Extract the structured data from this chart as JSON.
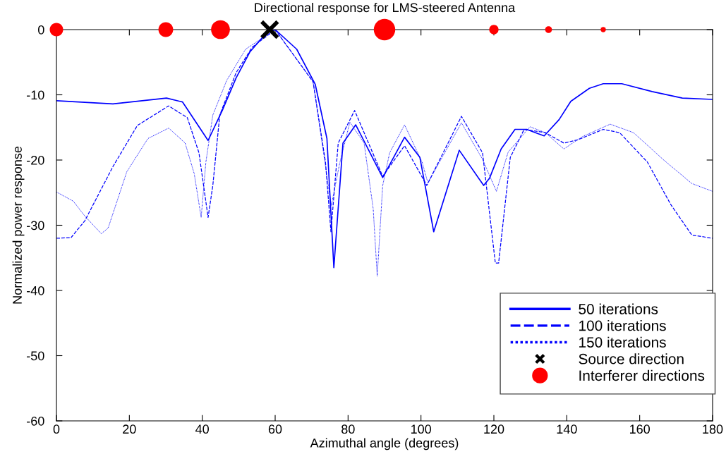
{
  "chart_data": {
    "type": "line",
    "title": "Directional response for LMS-steered Antenna",
    "xlabel": "Azimuthal angle (degrees)",
    "ylabel": "Normalized power response",
    "xlim": [
      0,
      180
    ],
    "xticks": [
      0,
      20,
      40,
      60,
      80,
      100,
      120,
      140,
      160,
      180
    ],
    "ylim": [
      -60,
      0
    ],
    "yticks": [
      -60,
      -50,
      -40,
      -30,
      -20,
      -10,
      0
    ],
    "grid": false,
    "legend": "bottom right",
    "series": [
      {
        "name": "50 iterations",
        "line_style": "solid",
        "color": "#0000ff",
        "x": [
          0,
          15.5,
          30.2,
          34.6,
          41.6,
          45.5,
          49.3,
          53.1,
          57.6,
          60,
          65.9,
          71,
          74.2,
          76.1,
          78.6,
          82.1,
          89.5,
          95.5,
          99.7,
          103.5,
          110.5,
          117.2,
          118.8,
          122,
          125.8,
          129,
          133.8,
          137.9,
          141.1,
          146.2,
          150,
          155.1,
          163.4,
          171.7,
          180
        ],
        "values": [
          -10.9,
          -11.4,
          -10.5,
          -11.1,
          -17.0,
          -12.4,
          -7.4,
          -3.4,
          -0.5,
          0,
          -3.0,
          -8.4,
          -16.7,
          -36.5,
          -17.4,
          -14.6,
          -22.7,
          -16.5,
          -19.6,
          -31.0,
          -18.5,
          -23.9,
          -22.8,
          -18.3,
          -15.3,
          -15.3,
          -16.3,
          -13.8,
          -11.0,
          -9.0,
          -8.3,
          -8.3,
          -9.5,
          -10.5,
          -10.7
        ]
      },
      {
        "name": "100 iterations",
        "line_style": "dashed",
        "color": "#0000ff",
        "x": [
          0,
          4,
          7.8,
          15.5,
          22.2,
          30.8,
          35.9,
          39.1,
          41.6,
          42.9,
          44.8,
          49.3,
          53.7,
          60,
          70.4,
          73.8,
          75.3,
          77.3,
          81.8,
          89.5,
          95.5,
          101.6,
          111.1,
          116.9,
          120.4,
          121.3,
          124.5,
          128.3,
          134.1,
          139.2,
          143,
          150,
          154.5,
          162.1,
          168.5,
          174.3,
          180
        ],
        "values": [
          -32.0,
          -31.9,
          -29.3,
          -21.0,
          -14.7,
          -11.7,
          -13.5,
          -18.9,
          -28.8,
          -23.9,
          -13.1,
          -6.6,
          -2.7,
          0,
          -8.0,
          -20.3,
          -31.0,
          -17.4,
          -12.4,
          -22.5,
          -17.8,
          -23.9,
          -13.3,
          -18.9,
          -35.8,
          -35.8,
          -19.6,
          -15.3,
          -15.8,
          -17.4,
          -16.9,
          -15.3,
          -15.8,
          -20.3,
          -26.8,
          -31.5,
          -32.0
        ]
      },
      {
        "name": "150 iterations",
        "line_style": "dotted",
        "color": "#0000ff",
        "x": [
          0,
          4.6,
          7.8,
          12.3,
          14.2,
          19.3,
          25.1,
          30.8,
          35.3,
          37.8,
          39.7,
          41,
          42.9,
          46.7,
          51.9,
          60,
          70.4,
          75.4,
          77.7,
          80.5,
          84.4,
          86.9,
          88,
          89.5,
          91.4,
          95.5,
          100.3,
          101.9,
          111.1,
          116.9,
          120.7,
          123.9,
          129.9,
          134.1,
          139.2,
          144.3,
          151.9,
          158.3,
          166.6,
          174.3,
          180
        ],
        "values": [
          -24.9,
          -26.3,
          -28.6,
          -31.3,
          -30.4,
          -21.8,
          -16.7,
          -15.1,
          -17.4,
          -22.1,
          -28.8,
          -20.3,
          -13.1,
          -7.8,
          -3.0,
          0,
          -8.0,
          -27.0,
          -20.5,
          -14.2,
          -17.4,
          -27.5,
          -37.8,
          -23.9,
          -18.9,
          -14.6,
          -20.3,
          -23.5,
          -14.3,
          -19.9,
          -24.8,
          -18.8,
          -14.9,
          -15.8,
          -18.3,
          -16.4,
          -14.5,
          -15.8,
          -20.0,
          -23.6,
          -24.8
        ]
      },
      {
        "name": "Source direction",
        "type": "scatter",
        "marker": "cross",
        "color": "#000000",
        "x": [
          58.5
        ],
        "values": [
          0
        ]
      },
      {
        "name": "Interferer directions",
        "type": "bubble",
        "marker": "circle",
        "color": "#ff0000",
        "x": [
          0,
          30,
          45,
          90,
          120,
          135,
          150
        ],
        "values": [
          0,
          0,
          0,
          0,
          0,
          0,
          0
        ],
        "sizes": [
          0.39,
          0.47,
          0.77,
          1,
          0.19,
          0.1,
          0.06
        ]
      }
    ]
  }
}
